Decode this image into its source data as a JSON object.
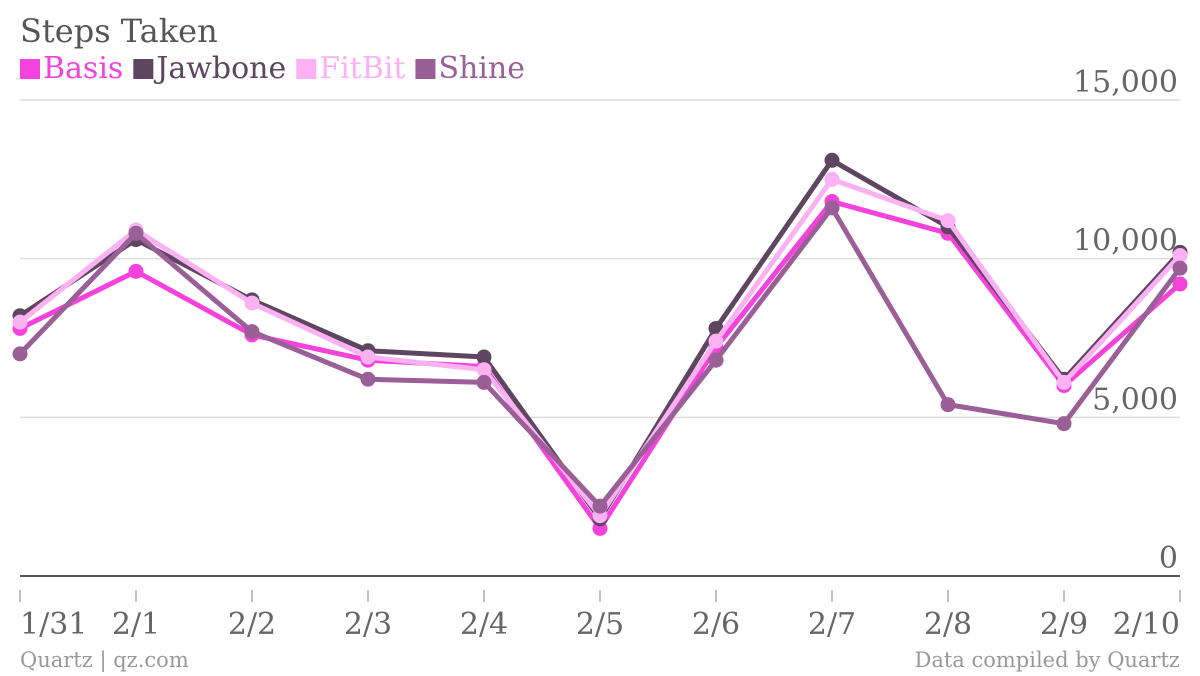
{
  "chart_data": {
    "type": "line",
    "title": "Steps Taken",
    "categories": [
      "1/31",
      "2/1",
      "2/2",
      "2/3",
      "2/4",
      "2/5",
      "2/6",
      "2/7",
      "2/8",
      "2/9",
      "2/10"
    ],
    "ylim": [
      0,
      15000
    ],
    "yticks": [
      "0",
      "5,000",
      "10,000",
      "15,000"
    ],
    "ytick_values": [
      0,
      5000,
      10000,
      15000
    ],
    "grid": true,
    "legend_position": "top-left",
    "series": [
      {
        "name": "Basis",
        "color": "#f542dc",
        "values": [
          7800,
          9600,
          7600,
          6800,
          6600,
          1500,
          7200,
          11800,
          10800,
          6000,
          9200
        ]
      },
      {
        "name": "Jawbone",
        "color": "#5e4560",
        "values": [
          8200,
          10600,
          8700,
          7100,
          6900,
          1800,
          7800,
          13100,
          11000,
          6200,
          10200
        ]
      },
      {
        "name": "FitBit",
        "color": "#fbb1f2",
        "values": [
          8000,
          10900,
          8600,
          6900,
          6500,
          1900,
          7400,
          12500,
          11200,
          6100,
          10100
        ]
      },
      {
        "name": "Shine",
        "color": "#9a5f97",
        "values": [
          7000,
          10800,
          7700,
          6200,
          6100,
          2200,
          6800,
          11600,
          5400,
          4800,
          9700
        ]
      }
    ]
  },
  "footer": {
    "left": "Quartz | qz.com",
    "right": "Data compiled by Quartz"
  }
}
